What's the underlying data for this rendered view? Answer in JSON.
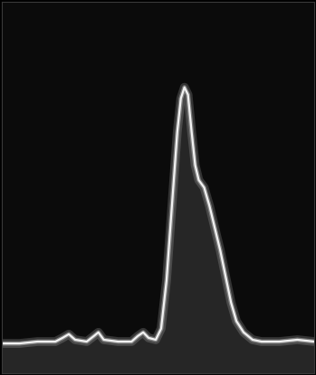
{
  "chart_data": {
    "type": "line",
    "color": "#f2f2f2",
    "tick_labels": false,
    "grid": false,
    "x": [
      0,
      20,
      40,
      60,
      68,
      75,
      82,
      95,
      103,
      108,
      114,
      130,
      145,
      152,
      158,
      164,
      172,
      178,
      184,
      190,
      196,
      200,
      204,
      208,
      212,
      216,
      220,
      226,
      232,
      238,
      244,
      250,
      256,
      262,
      270,
      280,
      290,
      310,
      330,
      349
    ],
    "values": [
      8,
      8,
      8.5,
      8.5,
      9.5,
      10.5,
      9,
      8.5,
      10,
      11,
      9,
      8.5,
      8.5,
      10,
      11,
      9.5,
      9,
      12,
      25,
      45,
      65,
      74,
      77,
      75,
      65,
      56,
      52,
      50,
      45,
      39,
      33,
      26,
      19,
      14,
      11,
      9,
      8.5,
      8.5,
      9,
      8.5
    ],
    "xlim": [
      0,
      349
    ],
    "ylim": [
      0,
      100
    ]
  }
}
